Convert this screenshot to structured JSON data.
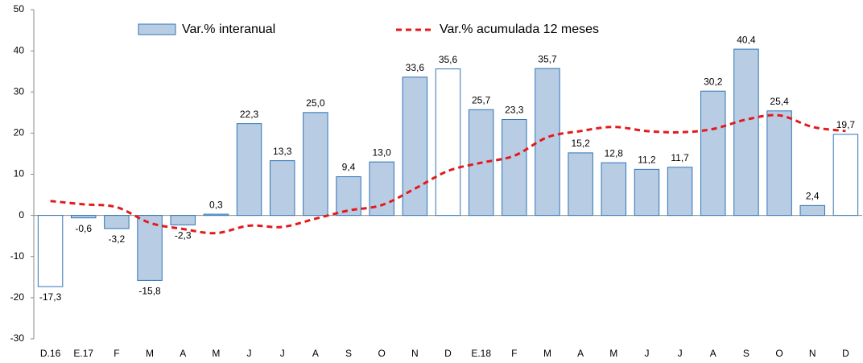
{
  "chart_data": {
    "type": "bar",
    "categories": [
      "D.16",
      "E.17",
      "F",
      "M",
      "A",
      "M",
      "J",
      "J",
      "A",
      "S",
      "O",
      "N",
      "D",
      "E.18",
      "F",
      "M",
      "A",
      "M",
      "J",
      "J",
      "A",
      "S",
      "O",
      "N",
      "D"
    ],
    "series": [
      {
        "name": "Var.% interanual",
        "type": "bar",
        "color": "#b8cce4",
        "edge_color": "#2e75b6",
        "colors": [
          "#ffffff",
          "#b8cce4",
          "#b8cce4",
          "#b8cce4",
          "#b8cce4",
          "#b8cce4",
          "#b8cce4",
          "#b8cce4",
          "#b8cce4",
          "#b8cce4",
          "#b8cce4",
          "#b8cce4",
          "#ffffff",
          "#b8cce4",
          "#b8cce4",
          "#b8cce4",
          "#b8cce4",
          "#b8cce4",
          "#b8cce4",
          "#b8cce4",
          "#b8cce4",
          "#b8cce4",
          "#b8cce4",
          "#b8cce4",
          "#ffffff"
        ],
        "values": [
          -17.3,
          -0.6,
          -3.2,
          -15.8,
          -2.3,
          0.3,
          22.3,
          13.3,
          25.0,
          9.4,
          13.0,
          33.6,
          35.6,
          25.7,
          23.3,
          35.7,
          15.2,
          12.8,
          11.2,
          11.7,
          30.2,
          40.4,
          25.4,
          2.4,
          19.7
        ],
        "value_labels": [
          "-17,3",
          "-0,6",
          "-3,2",
          "-15,8",
          "-2,3",
          "0,3",
          "22,3",
          "13,3",
          "25,0",
          "9,4",
          "13,0",
          "33,6",
          "35,6",
          "25,7",
          "23,3",
          "35,7",
          "15,2",
          "12,8",
          "11,2",
          "11,7",
          "30,2",
          "40,4",
          "25,4",
          "2,4",
          "19,7"
        ]
      },
      {
        "name": "Var.% acumulada 12 meses",
        "type": "line",
        "color": "#e31a1c",
        "dashed": true,
        "values": [
          3.5,
          2.7,
          2.0,
          -1.8,
          -3.3,
          -4.3,
          -2.5,
          -2.8,
          -0.8,
          1.2,
          2.5,
          6.5,
          10.8,
          12.8,
          14.5,
          19.0,
          20.5,
          21.5,
          20.5,
          20.2,
          21.0,
          23.3,
          24.3,
          21.5,
          20.5
        ]
      }
    ],
    "ylim": [
      -30,
      50
    ],
    "yticks": [
      -30,
      -20,
      -10,
      0,
      10,
      20,
      30,
      40,
      50
    ],
    "grid": false,
    "legend": "top"
  }
}
